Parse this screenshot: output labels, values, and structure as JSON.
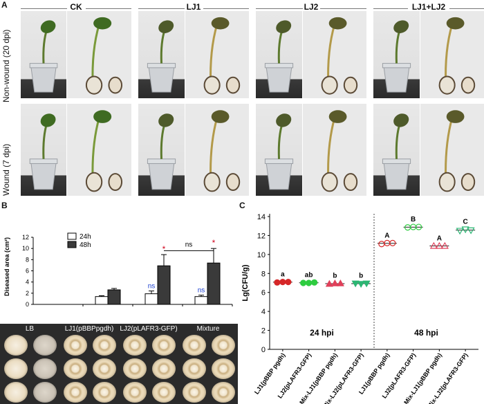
{
  "panel_a": {
    "letter": "A",
    "columns": [
      "CK",
      "LJ1",
      "LJ2",
      "LJ1+LJ2"
    ],
    "rows": [
      "Non-wound (20 dpi)",
      "Wound (7 dpi)"
    ]
  },
  "panel_b": {
    "letter": "B",
    "disc_labels": [
      "LB",
      "LJ1(pBBPpgdh)",
      "LJ2(pLAFR3-GFP)",
      "Mixture"
    ]
  },
  "panel_c": {
    "letter": "C"
  },
  "colors": {
    "bar_24h": "#ffffff",
    "bar_48h": "#3a3a3a",
    "sig_red": "#d0021b",
    "ns_blue": "#1a3fd0",
    "series": [
      "#d62728",
      "#2ecc40",
      "#e0405a",
      "#2bb673"
    ]
  },
  "chart_data": [
    {
      "type": "bar",
      "ylabel": "Diseased area (cm²)",
      "ylim": [
        0,
        12
      ],
      "yticks": [
        "0",
        "2",
        "4",
        "6",
        "8",
        "10",
        "12"
      ],
      "categories": [
        "LB",
        "LJ1(pBBPpgdh)",
        "LJ2(pLAFR3-GFP)",
        "Mixture"
      ],
      "series": [
        {
          "name": "24h",
          "values": [
            0,
            1.4,
            1.9,
            1.4
          ],
          "errors": [
            0,
            0.15,
            0.5,
            0.25
          ]
        },
        {
          "name": "48h",
          "values": [
            0,
            2.6,
            6.9,
            7.4
          ],
          "errors": [
            0,
            0.25,
            2.0,
            2.6
          ]
        }
      ],
      "annotations": {
        "significance": [
          {
            "category": 2,
            "series": 0,
            "text": "ns"
          },
          {
            "category": 2,
            "series": 1,
            "text": "*"
          },
          {
            "category": 3,
            "series": 0,
            "text": "ns"
          },
          {
            "category": 3,
            "series": 1,
            "text": "*"
          }
        ],
        "bracket": {
          "from": 2,
          "to": 3,
          "text": "ns",
          "y": 9.6
        }
      },
      "legend": "top-left"
    },
    {
      "type": "scatter",
      "ylabel": "Lg(CFU/g)",
      "ylim": [
        0,
        14
      ],
      "yticks": [
        "0",
        "2",
        "4",
        "6",
        "8",
        "10",
        "12",
        "14"
      ],
      "categories": [
        "LJ1(pBBP pgdh)",
        "LJ2(pLAFR3-GFP)",
        "Mix-LJ1(pBBP pgdh)",
        "Mix-LJ2(pLAFR3-GFP)",
        "LJ1(pBBP pgdh)",
        "LJ2(pLAFR3-GFP)",
        "Mix-LJ1(pBBP pgdh)",
        "Mix-LJ2(pLAFR3-GFP)"
      ],
      "group_labels": [
        "24 hpi",
        "48 hpi"
      ],
      "points": [
        {
          "category": 0,
          "values": [
            7.05,
            7.1,
            7.1
          ],
          "mean": 7.08,
          "letter": "a",
          "shape": "circle",
          "filled": true
        },
        {
          "category": 1,
          "values": [
            7.0,
            7.0,
            7.05
          ],
          "mean": 7.02,
          "letter": "ab",
          "shape": "circle",
          "filled": true
        },
        {
          "category": 2,
          "values": [
            6.9,
            6.95,
            6.95
          ],
          "mean": 6.93,
          "letter": "b",
          "shape": "triangle-up",
          "filled": true
        },
        {
          "category": 3,
          "values": [
            6.95,
            6.9,
            6.95
          ],
          "mean": 6.93,
          "letter": "b",
          "shape": "triangle-down",
          "filled": true
        },
        {
          "category": 4,
          "values": [
            11.1,
            11.2,
            11.2
          ],
          "mean": 11.17,
          "letter": "A",
          "shape": "circle",
          "filled": false
        },
        {
          "category": 5,
          "values": [
            12.85,
            12.9,
            12.9
          ],
          "mean": 12.88,
          "letter": "B",
          "shape": "circle",
          "filled": false
        },
        {
          "category": 6,
          "values": [
            10.9,
            10.9,
            10.9
          ],
          "mean": 10.9,
          "letter": "A",
          "shape": "triangle-up",
          "filled": false
        },
        {
          "category": 7,
          "values": [
            12.5,
            12.65,
            12.55
          ],
          "mean": 12.57,
          "letter": "C",
          "shape": "triangle-down",
          "filled": false
        }
      ]
    }
  ]
}
